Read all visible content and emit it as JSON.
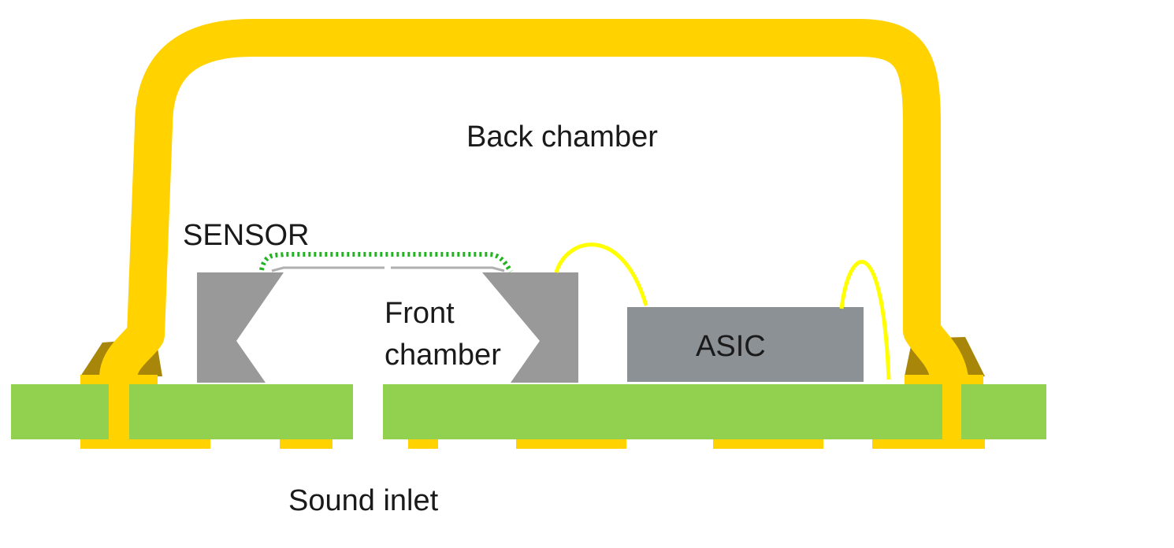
{
  "labels": {
    "back_chamber": "Back chamber",
    "sensor": "SENSOR",
    "front_chamber_line1": "Front",
    "front_chamber_line2": "chamber",
    "asic": "ASIC",
    "sound_inlet": "Sound inlet"
  },
  "colors": {
    "lid": "#FFD200",
    "lid_shadow": "#A8860A",
    "pcb": "#92D050",
    "pad": "#FFD200",
    "sensor_body": "#999999",
    "asic_body": "#8C9196",
    "bond_wire": "#FFFF00",
    "membrane": "#22B222",
    "backplate": "#B0B0B0"
  }
}
